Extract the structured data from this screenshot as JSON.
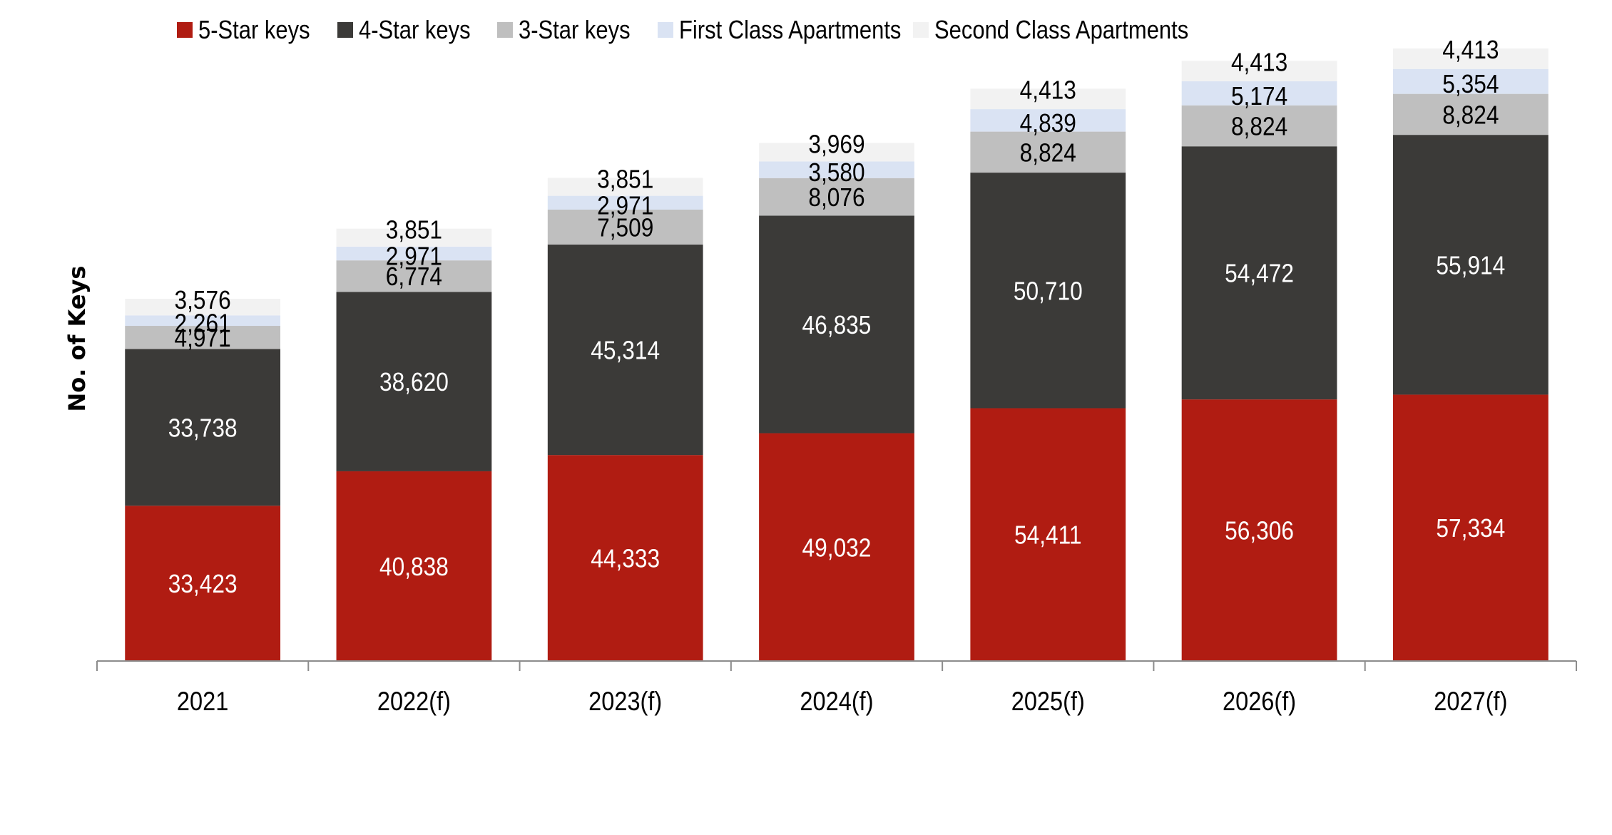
{
  "chart_data": {
    "type": "bar",
    "stacked": true,
    "title": "",
    "xlabel": "",
    "ylabel": "No. of Keys",
    "ylim": [
      0,
      132000
    ],
    "grid": false,
    "legend_position": "top",
    "categories": [
      "2021",
      "2022(f)",
      "2023(f)",
      "2024(f)",
      "2025(f)",
      "2026(f)",
      "2027(f)"
    ],
    "series": [
      {
        "name": "5-Star keys",
        "color": "#b01c12",
        "label_color": "#ffffff",
        "values": [
          33423,
          40838,
          44333,
          49032,
          54411,
          56306,
          57334
        ]
      },
      {
        "name": "4-Star keys",
        "color": "#3b3a38",
        "label_color": "#ffffff",
        "values": [
          33738,
          38620,
          45314,
          46835,
          50710,
          54472,
          55914
        ]
      },
      {
        "name": "3-Star keys",
        "color": "#bfbfbf",
        "label_color": "#000000",
        "values": [
          4971,
          6774,
          7509,
          8076,
          8824,
          8824,
          8824
        ]
      },
      {
        "name": "First Class Apartments",
        "color": "#dae3f3",
        "label_color": "#000000",
        "values": [
          2261,
          2971,
          2971,
          3580,
          4839,
          5174,
          5354
        ]
      },
      {
        "name": "Second Class Apartments",
        "color": "#f2f2f2",
        "label_color": "#000000",
        "values": [
          3576,
          3851,
          3851,
          3969,
          4413,
          4413,
          4413
        ]
      }
    ]
  }
}
